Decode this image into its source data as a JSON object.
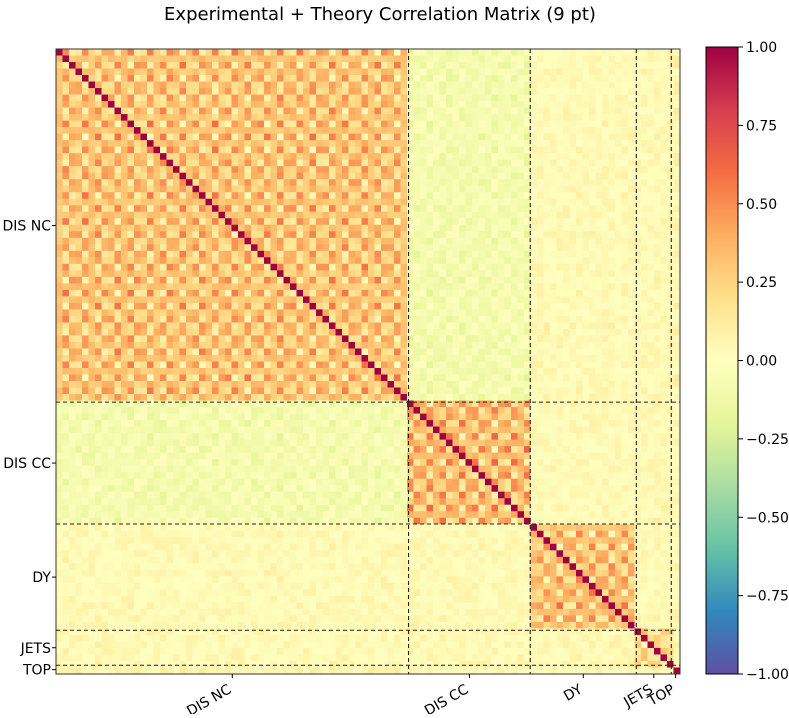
{
  "chart_data": {
    "type": "heatmap",
    "title": "Experimental + Theory Correlation Matrix (9 pt)",
    "xlabel": "",
    "ylabel": "",
    "value_range": [
      -1.0,
      1.0
    ],
    "colormap": "Spectral_r",
    "colormap_stops": [
      "#5e4fa2",
      "#3288bd",
      "#66c2a5",
      "#abdda4",
      "#e6f598",
      "#ffffbf",
      "#fee08b",
      "#fdae61",
      "#f46d43",
      "#d53e4f",
      "#9e0142"
    ],
    "grid": false,
    "legend": "colorbar right",
    "colorbar_ticks": [
      "1.00",
      "0.75",
      "0.50",
      "0.25",
      "0.00",
      "−0.25",
      "−0.50",
      "−0.75",
      "−1.00"
    ],
    "colorbar_tick_values": [
      1.0,
      0.75,
      0.5,
      0.25,
      0.0,
      -0.25,
      -0.5,
      -0.75,
      -1.0
    ],
    "groups": [
      {
        "label": "DIS NC",
        "fraction": 0.565
      },
      {
        "label": "DIS CC",
        "fraction": 0.195
      },
      {
        "label": "DY",
        "fraction": 0.17
      },
      {
        "label": "JETS",
        "fraction": 0.056
      },
      {
        "label": "TOP",
        "fraction": 0.014
      }
    ],
    "block_correlations": [
      [
        0.55,
        -0.15,
        0.05,
        0.05,
        0.1
      ],
      [
        -0.15,
        0.6,
        0.05,
        0.05,
        0.05
      ],
      [
        0.05,
        0.05,
        0.55,
        0.05,
        0.05
      ],
      [
        0.05,
        0.05,
        0.05,
        0.35,
        0.05
      ],
      [
        0.1,
        0.05,
        0.05,
        0.05,
        0.4
      ]
    ],
    "diagonal": 1.0
  }
}
